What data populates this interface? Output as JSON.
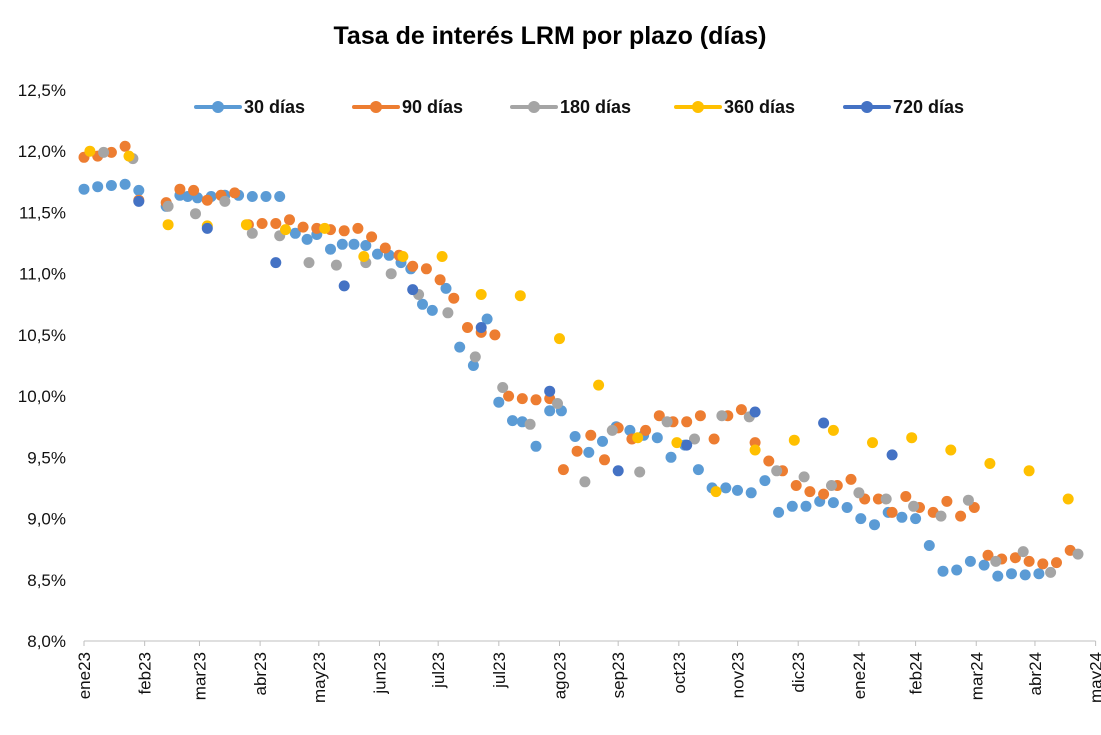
{
  "chart_data": {
    "type": "scatter",
    "title": "Tasa de interés LRM por plazo (días)",
    "xlabel": "",
    "ylabel": "",
    "x_domain": [
      "2023-01-01",
      "2024-05-23"
    ],
    "ylim": [
      8.0,
      12.5
    ],
    "y_ticks": [
      8.0,
      8.5,
      9.0,
      9.5,
      10.0,
      10.5,
      11.0,
      11.5,
      12.0,
      12.5
    ],
    "y_tick_labels": [
      "8,0%",
      "8,5%",
      "9,0%",
      "9,5%",
      "10,0%",
      "10,5%",
      "11,0%",
      "11,5%",
      "12,0%",
      "12,5%"
    ],
    "x_ticks": [
      {
        "date": "2023-01-01",
        "label": "ene23"
      },
      {
        "date": "2023-02-01",
        "label": "feb23"
      },
      {
        "date": "2023-03-01",
        "label": "mar23"
      },
      {
        "date": "2023-04-01",
        "label": "abr23"
      },
      {
        "date": "2023-05-01",
        "label": "may23"
      },
      {
        "date": "2023-06-01",
        "label": "jun23"
      },
      {
        "date": "2023-07-01",
        "label": "jul23"
      },
      {
        "date": "2023-08-01",
        "label": "jul23"
      },
      {
        "date": "2023-09-01",
        "label": "ago23"
      },
      {
        "date": "2023-10-01",
        "label": "sep23"
      },
      {
        "date": "2023-11-01",
        "label": "oct23"
      },
      {
        "date": "2023-12-01",
        "label": "nov23"
      },
      {
        "date": "2024-01-01",
        "label": "dic23"
      },
      {
        "date": "2024-02-01",
        "label": "ene24"
      },
      {
        "date": "2024-03-01",
        "label": "feb24"
      },
      {
        "date": "2024-04-01",
        "label": "mar24"
      },
      {
        "date": "2024-05-01",
        "label": "abr24"
      },
      {
        "date": "2024-06-01",
        "label": "may24"
      }
    ],
    "grid": false,
    "legend_position": "top",
    "series": [
      {
        "name": "30 días",
        "color": "#5B9BD5",
        "points": [
          [
            "2023-01-01",
            11.69
          ],
          [
            "2023-01-08",
            11.71
          ],
          [
            "2023-01-15",
            11.72
          ],
          [
            "2023-01-22",
            11.73
          ],
          [
            "2023-01-29",
            11.68
          ],
          [
            "2023-02-12",
            11.55
          ],
          [
            "2023-02-19",
            11.64
          ],
          [
            "2023-02-23",
            11.63
          ],
          [
            "2023-02-28",
            11.62
          ],
          [
            "2023-03-07",
            11.63
          ],
          [
            "2023-03-14",
            11.64
          ],
          [
            "2023-03-21",
            11.64
          ],
          [
            "2023-03-28",
            11.63
          ],
          [
            "2023-04-04",
            11.63
          ],
          [
            "2023-04-11",
            11.63
          ],
          [
            "2023-04-19",
            11.33
          ],
          [
            "2023-04-25",
            11.28
          ],
          [
            "2023-04-30",
            11.32
          ],
          [
            "2023-05-07",
            11.2
          ],
          [
            "2023-05-13",
            11.24
          ],
          [
            "2023-05-19",
            11.24
          ],
          [
            "2023-05-25",
            11.23
          ],
          [
            "2023-05-31",
            11.16
          ],
          [
            "2023-06-06",
            11.15
          ],
          [
            "2023-06-12",
            11.09
          ],
          [
            "2023-06-17",
            11.04
          ],
          [
            "2023-06-23",
            10.75
          ],
          [
            "2023-06-28",
            10.7
          ],
          [
            "2023-07-05",
            10.88
          ],
          [
            "2023-07-12",
            10.4
          ],
          [
            "2023-07-19",
            10.25
          ],
          [
            "2023-07-26",
            10.63
          ],
          [
            "2023-08-01",
            9.95
          ],
          [
            "2023-08-08",
            9.8
          ],
          [
            "2023-08-13",
            9.79
          ],
          [
            "2023-08-20",
            9.59
          ],
          [
            "2023-08-27",
            9.88
          ],
          [
            "2023-09-02",
            9.88
          ],
          [
            "2023-09-09",
            9.67
          ],
          [
            "2023-09-16",
            9.54
          ],
          [
            "2023-09-23",
            9.63
          ],
          [
            "2023-09-30",
            9.75
          ],
          [
            "2023-10-07",
            9.72
          ],
          [
            "2023-10-14",
            9.68
          ],
          [
            "2023-10-21",
            9.66
          ],
          [
            "2023-10-28",
            9.5
          ],
          [
            "2023-11-04",
            9.6
          ],
          [
            "2023-11-11",
            9.4
          ],
          [
            "2023-11-18",
            9.25
          ],
          [
            "2023-11-25",
            9.25
          ],
          [
            "2023-12-01",
            9.23
          ],
          [
            "2023-12-08",
            9.21
          ],
          [
            "2023-12-15",
            9.31
          ],
          [
            "2023-12-22",
            9.05
          ],
          [
            "2023-12-29",
            9.1
          ],
          [
            "2024-01-05",
            9.1
          ],
          [
            "2024-01-12",
            9.14
          ],
          [
            "2024-01-19",
            9.13
          ],
          [
            "2024-01-26",
            9.09
          ],
          [
            "2024-02-02",
            9.0
          ],
          [
            "2024-02-09",
            8.95
          ],
          [
            "2024-02-16",
            9.05
          ],
          [
            "2024-02-23",
            9.01
          ],
          [
            "2024-03-01",
            9.0
          ],
          [
            "2024-03-08",
            8.78
          ],
          [
            "2024-03-15",
            8.57
          ],
          [
            "2024-03-22",
            8.58
          ],
          [
            "2024-03-29",
            8.65
          ],
          [
            "2024-04-05",
            8.62
          ],
          [
            "2024-04-12",
            8.53
          ],
          [
            "2024-04-19",
            8.55
          ],
          [
            "2024-04-26",
            8.54
          ],
          [
            "2024-05-03",
            8.55
          ]
        ]
      },
      {
        "name": "90 días",
        "color": "#ED7D31",
        "points": [
          [
            "2023-01-01",
            11.95
          ],
          [
            "2023-01-08",
            11.96
          ],
          [
            "2023-01-15",
            11.99
          ],
          [
            "2023-01-22",
            12.04
          ],
          [
            "2023-01-29",
            11.6
          ],
          [
            "2023-02-12",
            11.58
          ],
          [
            "2023-02-19",
            11.69
          ],
          [
            "2023-02-26",
            11.68
          ],
          [
            "2023-03-05",
            11.6
          ],
          [
            "2023-03-12",
            11.64
          ],
          [
            "2023-03-19",
            11.66
          ],
          [
            "2023-03-26",
            11.4
          ],
          [
            "2023-04-02",
            11.41
          ],
          [
            "2023-04-09",
            11.41
          ],
          [
            "2023-04-16",
            11.44
          ],
          [
            "2023-04-23",
            11.38
          ],
          [
            "2023-04-30",
            11.37
          ],
          [
            "2023-05-07",
            11.36
          ],
          [
            "2023-05-14",
            11.35
          ],
          [
            "2023-05-21",
            11.37
          ],
          [
            "2023-05-28",
            11.3
          ],
          [
            "2023-06-04",
            11.21
          ],
          [
            "2023-06-11",
            11.15
          ],
          [
            "2023-06-18",
            11.06
          ],
          [
            "2023-06-25",
            11.04
          ],
          [
            "2023-07-02",
            10.95
          ],
          [
            "2023-07-09",
            10.8
          ],
          [
            "2023-07-16",
            10.56
          ],
          [
            "2023-07-23",
            10.52
          ],
          [
            "2023-07-30",
            10.5
          ],
          [
            "2023-08-06",
            10.0
          ],
          [
            "2023-08-13",
            9.98
          ],
          [
            "2023-08-20",
            9.97
          ],
          [
            "2023-08-27",
            9.98
          ],
          [
            "2023-09-03",
            9.4
          ],
          [
            "2023-09-10",
            9.55
          ],
          [
            "2023-09-17",
            9.68
          ],
          [
            "2023-09-24",
            9.48
          ],
          [
            "2023-10-01",
            9.74
          ],
          [
            "2023-10-08",
            9.65
          ],
          [
            "2023-10-15",
            9.72
          ],
          [
            "2023-10-22",
            9.84
          ],
          [
            "2023-10-29",
            9.79
          ],
          [
            "2023-11-05",
            9.79
          ],
          [
            "2023-11-12",
            9.84
          ],
          [
            "2023-11-19",
            9.65
          ],
          [
            "2023-11-26",
            9.84
          ],
          [
            "2023-12-03",
            9.89
          ],
          [
            "2023-12-10",
            9.62
          ],
          [
            "2023-12-17",
            9.47
          ],
          [
            "2023-12-24",
            9.39
          ],
          [
            "2023-12-31",
            9.27
          ],
          [
            "2024-01-07",
            9.22
          ],
          [
            "2024-01-14",
            9.2
          ],
          [
            "2024-01-21",
            9.27
          ],
          [
            "2024-01-28",
            9.32
          ],
          [
            "2024-02-04",
            9.16
          ],
          [
            "2024-02-11",
            9.16
          ],
          [
            "2024-02-18",
            9.05
          ],
          [
            "2024-02-25",
            9.18
          ],
          [
            "2024-03-03",
            9.09
          ],
          [
            "2024-03-10",
            9.05
          ],
          [
            "2024-03-17",
            9.14
          ],
          [
            "2024-03-24",
            9.02
          ],
          [
            "2024-03-31",
            9.09
          ],
          [
            "2024-04-07",
            8.7
          ],
          [
            "2024-04-14",
            8.67
          ],
          [
            "2024-04-21",
            8.68
          ],
          [
            "2024-04-28",
            8.65
          ],
          [
            "2024-05-05",
            8.63
          ],
          [
            "2024-05-12",
            8.64
          ],
          [
            "2024-05-19",
            8.74
          ]
        ]
      },
      {
        "name": "180 días",
        "color": "#A5A5A5",
        "points": [
          [
            "2023-01-11",
            11.99
          ],
          [
            "2023-01-26",
            11.94
          ],
          [
            "2023-02-13",
            11.55
          ],
          [
            "2023-02-27",
            11.49
          ],
          [
            "2023-03-14",
            11.59
          ],
          [
            "2023-03-28",
            11.33
          ],
          [
            "2023-04-11",
            11.31
          ],
          [
            "2023-04-26",
            11.09
          ],
          [
            "2023-05-10",
            11.07
          ],
          [
            "2023-05-25",
            11.09
          ],
          [
            "2023-06-07",
            11.0
          ],
          [
            "2023-06-21",
            10.83
          ],
          [
            "2023-07-06",
            10.68
          ],
          [
            "2023-07-20",
            10.32
          ],
          [
            "2023-08-03",
            10.07
          ],
          [
            "2023-08-17",
            9.77
          ],
          [
            "2023-08-31",
            9.94
          ],
          [
            "2023-09-14",
            9.3
          ],
          [
            "2023-09-28",
            9.72
          ],
          [
            "2023-10-12",
            9.38
          ],
          [
            "2023-10-26",
            9.79
          ],
          [
            "2023-11-09",
            9.65
          ],
          [
            "2023-11-23",
            9.84
          ],
          [
            "2023-12-07",
            9.83
          ],
          [
            "2023-12-21",
            9.39
          ],
          [
            "2024-01-04",
            9.34
          ],
          [
            "2024-01-18",
            9.27
          ],
          [
            "2024-02-01",
            9.21
          ],
          [
            "2024-02-15",
            9.16
          ],
          [
            "2024-02-29",
            9.1
          ],
          [
            "2024-03-14",
            9.02
          ],
          [
            "2024-03-28",
            9.15
          ],
          [
            "2024-04-11",
            8.65
          ],
          [
            "2024-04-25",
            8.73
          ],
          [
            "2024-05-09",
            8.56
          ],
          [
            "2024-05-23",
            8.71
          ]
        ]
      },
      {
        "name": "360 días",
        "color": "#FFC000",
        "points": [
          [
            "2023-01-04",
            12.0
          ],
          [
            "2023-01-24",
            11.96
          ],
          [
            "2023-02-13",
            11.4
          ],
          [
            "2023-03-05",
            11.39
          ],
          [
            "2023-03-25",
            11.4
          ],
          [
            "2023-04-14",
            11.36
          ],
          [
            "2023-05-04",
            11.37
          ],
          [
            "2023-05-24",
            11.14
          ],
          [
            "2023-06-13",
            11.14
          ],
          [
            "2023-07-03",
            11.14
          ],
          [
            "2023-07-23",
            10.83
          ],
          [
            "2023-08-12",
            10.82
          ],
          [
            "2023-09-01",
            10.47
          ],
          [
            "2023-09-21",
            10.09
          ],
          [
            "2023-10-11",
            9.66
          ],
          [
            "2023-10-31",
            9.62
          ],
          [
            "2023-11-20",
            9.22
          ],
          [
            "2023-12-10",
            9.56
          ],
          [
            "2023-12-30",
            9.64
          ],
          [
            "2024-01-19",
            9.72
          ],
          [
            "2024-02-08",
            9.62
          ],
          [
            "2024-02-28",
            9.66
          ],
          [
            "2024-03-19",
            9.56
          ],
          [
            "2024-04-08",
            9.45
          ],
          [
            "2024-04-28",
            9.39
          ],
          [
            "2024-05-18",
            9.16
          ]
        ]
      },
      {
        "name": "720 días",
        "color": "#4472C4",
        "points": [
          [
            "2023-01-29",
            11.59
          ],
          [
            "2023-03-05",
            11.37
          ],
          [
            "2023-04-09",
            11.09
          ],
          [
            "2023-05-14",
            10.9
          ],
          [
            "2023-06-18",
            10.87
          ],
          [
            "2023-07-23",
            10.56
          ],
          [
            "2023-08-27",
            10.04
          ],
          [
            "2023-10-01",
            9.39
          ],
          [
            "2023-11-05",
            9.6
          ],
          [
            "2023-12-10",
            9.87
          ],
          [
            "2024-01-14",
            9.78
          ],
          [
            "2024-02-18",
            9.52
          ]
        ]
      }
    ]
  }
}
